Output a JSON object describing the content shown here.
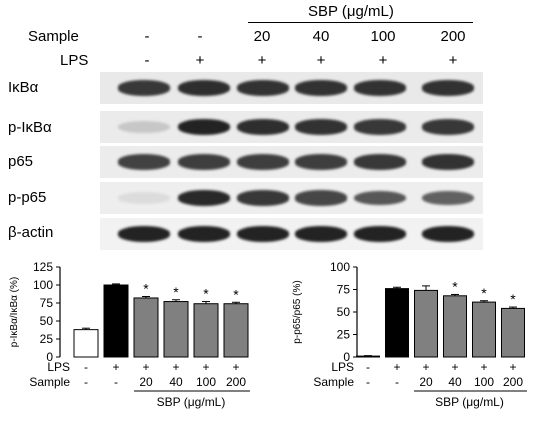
{
  "header": {
    "sbp_group_label": "SBP (μg/mL)",
    "sample_label": "Sample",
    "lps_label": "LPS",
    "lanes": [
      {
        "sample": "-",
        "lps": "-"
      },
      {
        "sample": "-",
        "lps": "+"
      },
      {
        "sample": "20",
        "lps": "+"
      },
      {
        "sample": "40",
        "lps": "+"
      },
      {
        "sample": "100",
        "lps": "+"
      },
      {
        "sample": "200",
        "lps": "+"
      }
    ]
  },
  "blots": [
    {
      "label": "IκBα",
      "intensity": [
        0.85,
        0.9,
        0.88,
        0.88,
        0.88,
        0.88
      ],
      "background": "#e9e9e9"
    },
    {
      "label": "p-IκBα",
      "intensity": [
        0.15,
        0.95,
        0.9,
        0.88,
        0.85,
        0.85
      ],
      "background": "#ebebeb"
    },
    {
      "label": "p65",
      "intensity": [
        0.8,
        0.82,
        0.82,
        0.82,
        0.85,
        0.88
      ],
      "background": "#ececec"
    },
    {
      "label": "p-p65",
      "intensity": [
        0.05,
        0.92,
        0.85,
        0.78,
        0.7,
        0.65
      ],
      "background": "#eeeeee"
    },
    {
      "label": "β-actin",
      "intensity": [
        0.95,
        0.95,
        0.95,
        0.95,
        0.95,
        0.95
      ],
      "background": "#f2f2f2"
    }
  ],
  "chart_data": [
    {
      "type": "bar",
      "ylabel": "p-IκBα/IκBα (%)",
      "ylim": [
        0,
        125
      ],
      "yticks": [
        0,
        25,
        50,
        75,
        100,
        125
      ],
      "categories": [
        "1",
        "2",
        "3",
        "4",
        "5",
        "6"
      ],
      "values": [
        38,
        100,
        82,
        77,
        74,
        74
      ],
      "errors": [
        2,
        1.5,
        2,
        2.5,
        3,
        2
      ],
      "significance": [
        "",
        "",
        "*",
        "*",
        "*",
        "*"
      ],
      "bar_colors": [
        "#ffffff",
        "#000000",
        "#808080",
        "#808080",
        "#808080",
        "#808080"
      ],
      "lps_row": [
        "-",
        "+",
        "+",
        "+",
        "+",
        "+"
      ],
      "sample_row": [
        "-",
        "-",
        "20",
        "40",
        "100",
        "200"
      ],
      "lps_label": "LPS",
      "sample_label": "Sample",
      "group_label": "SBP (μg/mL)"
    },
    {
      "type": "bar",
      "ylabel": "p-p65/p65 (%)",
      "ylim": [
        0,
        100
      ],
      "yticks": [
        0,
        25,
        50,
        75,
        100
      ],
      "categories": [
        "1",
        "2",
        "3",
        "4",
        "5",
        "6"
      ],
      "values": [
        1,
        76,
        74,
        68,
        61,
        54
      ],
      "errors": [
        0.5,
        1.5,
        5,
        1.5,
        1.5,
        1.5
      ],
      "significance": [
        "",
        "",
        "",
        "*",
        "*",
        "*"
      ],
      "bar_colors": [
        "#ffffff",
        "#000000",
        "#808080",
        "#808080",
        "#808080",
        "#808080"
      ],
      "lps_row": [
        "-",
        "+",
        "+",
        "+",
        "+",
        "+"
      ],
      "sample_row": [
        "-",
        "-",
        "20",
        "40",
        "100",
        "200"
      ],
      "lps_label": "LPS",
      "sample_label": "Sample",
      "group_label": "SBP (μg/mL)"
    }
  ]
}
